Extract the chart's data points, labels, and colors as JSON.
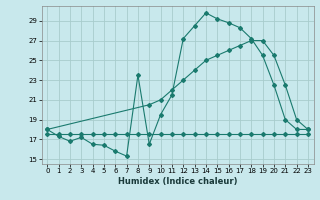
{
  "xlabel": "Humidex (Indice chaleur)",
  "bg_color": "#c8e8ec",
  "grid_color": "#a8cccc",
  "line_color": "#1a7a6e",
  "xlim": [
    -0.5,
    23.5
  ],
  "ylim": [
    14.5,
    30.5
  ],
  "xticks": [
    0,
    1,
    2,
    3,
    4,
    5,
    6,
    7,
    8,
    9,
    10,
    11,
    12,
    13,
    14,
    15,
    16,
    17,
    18,
    19,
    20,
    21,
    22,
    23
  ],
  "yticks": [
    15,
    17,
    19,
    21,
    23,
    25,
    27,
    29
  ],
  "line1_x": [
    0,
    1,
    2,
    3,
    4,
    5,
    6,
    7,
    8,
    9,
    10,
    11,
    12,
    13,
    14,
    15,
    16,
    17,
    18,
    19,
    20,
    21,
    22,
    23
  ],
  "line1_y": [
    18.0,
    17.3,
    16.8,
    17.2,
    16.5,
    16.4,
    15.8,
    15.3,
    23.5,
    16.5,
    19.5,
    21.5,
    27.2,
    28.5,
    29.8,
    29.2,
    28.8,
    28.3,
    27.2,
    25.5,
    22.5,
    19.0,
    18.0,
    18.0
  ],
  "line2_x": [
    0,
    1,
    2,
    3,
    4,
    5,
    6,
    7,
    8,
    9,
    10,
    11,
    12,
    13,
    14,
    15,
    16,
    17,
    18,
    19,
    20,
    21,
    22,
    23
  ],
  "line2_y": [
    17.5,
    17.5,
    17.5,
    17.5,
    17.5,
    17.5,
    17.5,
    17.5,
    17.5,
    17.5,
    17.5,
    17.5,
    17.5,
    17.5,
    17.5,
    17.5,
    17.5,
    17.5,
    17.5,
    17.5,
    17.5,
    17.5,
    17.5,
    17.5
  ],
  "line3_x": [
    0,
    9,
    10,
    11,
    12,
    13,
    14,
    15,
    16,
    17,
    18,
    19,
    20,
    21,
    22,
    23
  ],
  "line3_y": [
    18.0,
    20.5,
    21.0,
    22.0,
    23.0,
    24.0,
    25.0,
    25.5,
    26.0,
    26.5,
    27.0,
    27.0,
    25.5,
    22.5,
    19.0,
    18.0
  ]
}
